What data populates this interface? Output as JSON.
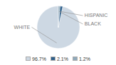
{
  "chart_data": {
    "type": "pie",
    "categories": [
      "WHITE",
      "HISPANIC",
      "BLACK"
    ],
    "values": [
      96.7,
      2.1,
      1.2
    ],
    "value_labels": [
      "96.7%",
      "2.1%",
      "1.2%"
    ],
    "colors": [
      "#cdd8e3",
      "#2e5f8a",
      "#8faabb"
    ],
    "legend": "bottom"
  }
}
